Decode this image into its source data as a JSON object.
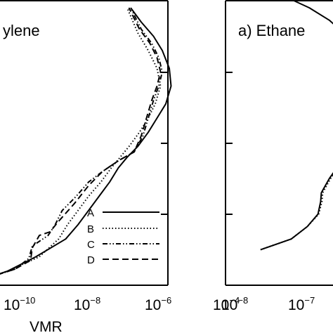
{
  "chart_data": [
    {
      "type": "line",
      "title": "ylene",
      "xlabel": "VMR",
      "x_scale": "log",
      "x_ticks": [
        {
          "mantissa": "10",
          "exponent": "−10"
        },
        {
          "mantissa": "10",
          "exponent": "−8"
        },
        {
          "mantissa": "10",
          "exponent": "−6"
        },
        {
          "mantissa": "10",
          "exponent": "−4"
        }
      ],
      "legend_position": "bottom-right",
      "series": [
        {
          "name": "A",
          "style": "solid",
          "x": [
            -11.6,
            -10.8,
            -10.2,
            -9.4,
            -8.55,
            -8.2,
            -7.9,
            -7.6,
            -7.3,
            -7.05,
            -6.8,
            -6.5,
            -6.2,
            -5.95,
            -5.7,
            -5.55,
            -5.6,
            -5.8,
            -6.05,
            -6.4,
            -6.7
          ],
          "y": [
            0.1,
            0.2,
            0.4,
            0.8,
            1.3,
            1.7,
            2.1,
            2.5,
            2.9,
            3.3,
            3.6,
            3.9,
            4.3,
            4.7,
            5.1,
            5.6,
            6.1,
            6.6,
            7.0,
            7.4,
            7.8
          ]
        },
        {
          "name": "B",
          "style": "dotted",
          "x": [
            -11.6,
            -10.8,
            -10.2,
            -9.3,
            -8.75,
            -8.5,
            -8.2,
            -7.9,
            -7.55,
            -7.25,
            -7.0,
            -6.75,
            -6.45,
            -6.2,
            -6.0,
            -5.85,
            -5.95,
            -6.2,
            -6.5,
            -6.8
          ],
          "y": [
            0.1,
            0.2,
            0.4,
            0.8,
            1.3,
            1.7,
            2.1,
            2.5,
            2.9,
            3.3,
            3.6,
            3.9,
            4.3,
            4.7,
            5.1,
            5.6,
            6.1,
            6.6,
            7.1,
            7.8
          ]
        },
        {
          "name": "C",
          "style": "dash-dot-dot",
          "x": [
            -11.6,
            -10.8,
            -10.0,
            -9.6,
            -9.5,
            -9.05,
            -8.85,
            -8.65,
            -8.25,
            -7.9,
            -7.5,
            -7.05,
            -6.6,
            -6.35,
            -6.2,
            -6.05,
            -5.9,
            -5.8,
            -5.9,
            -6.1,
            -6.4,
            -6.7
          ],
          "y": [
            0.1,
            0.2,
            0.45,
            0.75,
            1.1,
            1.4,
            1.7,
            2.1,
            2.5,
            2.9,
            3.2,
            3.5,
            3.75,
            4.2,
            4.7,
            5.2,
            5.6,
            6.0,
            6.4,
            6.8,
            7.2,
            7.8
          ]
        },
        {
          "name": "D",
          "style": "dashed",
          "x": [
            -11.6,
            -10.8,
            -10.0,
            -9.55,
            -9.5,
            -9.3,
            -9.0,
            -8.75,
            -8.3,
            -7.9,
            -7.5,
            -7.05,
            -6.6,
            -6.4,
            -6.25,
            -6.1,
            -5.95,
            -5.85,
            -5.95,
            -6.15,
            -6.45,
            -6.75
          ],
          "y": [
            0.1,
            0.2,
            0.45,
            0.7,
            1.05,
            1.4,
            1.5,
            1.8,
            2.3,
            2.8,
            3.2,
            3.5,
            3.75,
            4.2,
            4.7,
            5.2,
            5.6,
            6.0,
            6.4,
            6.8,
            7.2,
            7.8
          ]
        }
      ]
    },
    {
      "type": "line",
      "title": "a) Ethane",
      "xlabel": "",
      "x_scale": "log",
      "x_ticks": [
        {
          "mantissa": "10",
          "exponent": "−8"
        },
        {
          "mantissa": "10",
          "exponent": "−7"
        }
      ],
      "series": [
        {
          "name": "A",
          "style": "solid",
          "x": [
            -7.58,
            -7.12,
            -6.88,
            -6.72,
            -6.68,
            -6.67,
            -6.55,
            -6.4
          ],
          "y": [
            1.0,
            1.3,
            1.65,
            2.0,
            2.35,
            2.6,
            3.0,
            3.4
          ]
        },
        {
          "name": "B",
          "style": "dotted",
          "x": [
            -7.58,
            -7.12,
            -6.88,
            -6.71,
            -6.66,
            -6.65,
            -6.53,
            -6.38
          ],
          "y": [
            1.0,
            1.3,
            1.65,
            2.0,
            2.35,
            2.6,
            3.0,
            3.4
          ]
        },
        {
          "name": "A",
          "style": "solid",
          "x": [
            -7.08,
            -6.85,
            -6.55,
            -6.4
          ],
          "y": [
            8.0,
            7.8,
            7.45,
            7.2
          ]
        }
      ]
    }
  ]
}
